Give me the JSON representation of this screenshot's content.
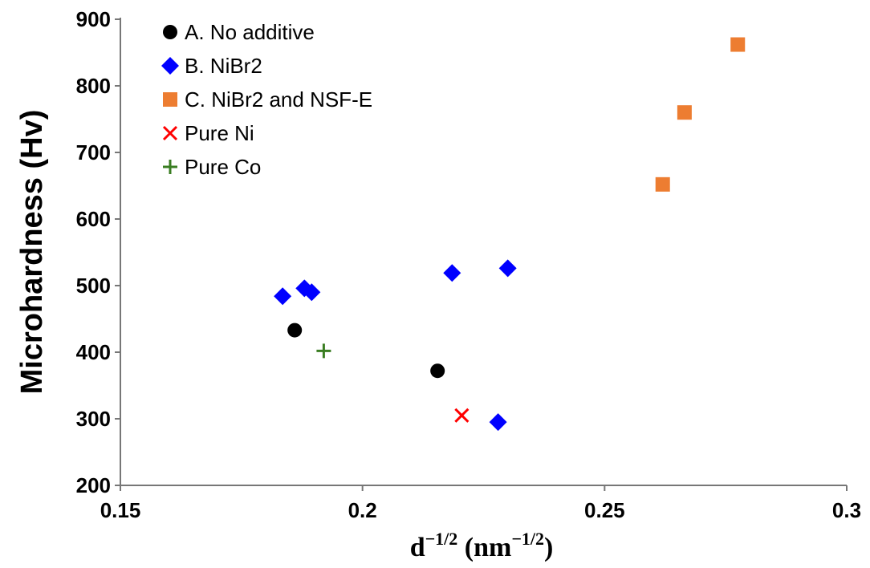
{
  "chart_data": {
    "type": "scatter",
    "xlabel": {
      "base": "d",
      "base_exp": "−1/2",
      "unit_open": " (nm",
      "unit_exp": "−1/2",
      "unit_close": ")"
    },
    "ylabel": "Microhardness (Hv)",
    "xlim": [
      0.15,
      0.3
    ],
    "ylim": [
      200,
      900
    ],
    "x_ticks": [
      0.15,
      0.2,
      0.25,
      0.3
    ],
    "x_tick_labels": [
      "0.15",
      "0.2",
      "0.25",
      "0.3"
    ],
    "y_ticks": [
      200,
      300,
      400,
      500,
      600,
      700,
      800,
      900
    ],
    "y_tick_labels": [
      "200",
      "300",
      "400",
      "500",
      "600",
      "700",
      "800",
      "900"
    ],
    "grid": false,
    "legend_position": "top-left",
    "series": [
      {
        "name": "A. No additive",
        "marker": "circle",
        "color": "#000000",
        "points": [
          [
            0.186,
            433
          ],
          [
            0.2155,
            372
          ]
        ]
      },
      {
        "name": "B. NiBr2",
        "marker": "diamond",
        "color": "#0000ff",
        "points": [
          [
            0.1835,
            484
          ],
          [
            0.188,
            496
          ],
          [
            0.1895,
            490
          ],
          [
            0.2185,
            519
          ],
          [
            0.23,
            526
          ],
          [
            0.228,
            295
          ]
        ]
      },
      {
        "name": "C. NiBr2 and NSF-E",
        "marker": "square",
        "color": "#ed7d31",
        "points": [
          [
            0.262,
            652
          ],
          [
            0.2665,
            760
          ],
          [
            0.2775,
            862
          ]
        ]
      },
      {
        "name": "Pure Ni",
        "marker": "x",
        "color": "#ff0000",
        "points": [
          [
            0.2205,
            305
          ]
        ]
      },
      {
        "name": "Pure Co",
        "marker": "plus",
        "color": "#3a7d22",
        "points": [
          [
            0.192,
            402
          ]
        ]
      }
    ]
  }
}
